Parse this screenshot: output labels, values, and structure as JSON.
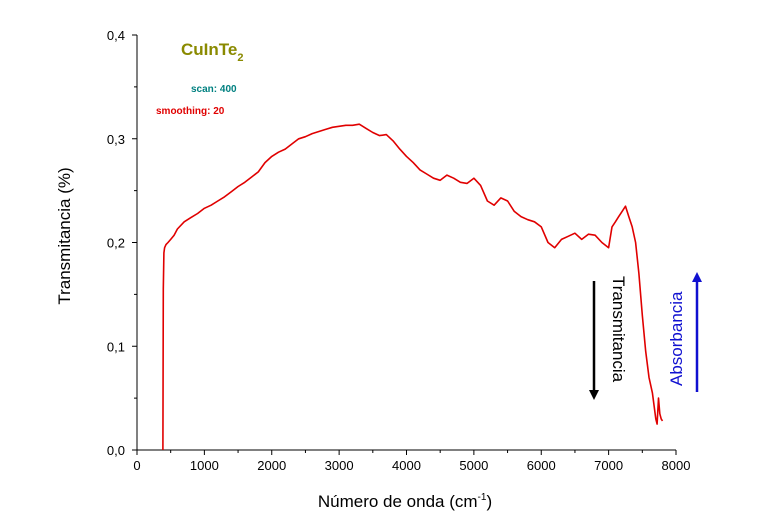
{
  "chart_data": {
    "type": "line",
    "xlabel": "Número de onda (cm",
    "xlabel_sup": "-1",
    "xlabel_close": ")",
    "ylabel": "Transmitancia (%)",
    "xlim": [
      0,
      8000
    ],
    "ylim": [
      0.0,
      0.4
    ],
    "x_ticks": [
      0,
      1000,
      2000,
      3000,
      4000,
      5000,
      6000,
      7000,
      8000
    ],
    "x_tick_labels": [
      "0",
      "1000",
      "2000",
      "3000",
      "4000",
      "5000",
      "6000",
      "7000",
      "8000"
    ],
    "y_ticks": [
      0.0,
      0.1,
      0.2,
      0.3,
      0.4
    ],
    "y_tick_labels": [
      "0,0",
      "0,1",
      "0,2",
      "0,3",
      "0,4"
    ],
    "grid": false,
    "legend": "none",
    "series": [
      {
        "color": "#e00000",
        "x": [
          385,
          390,
          400,
          410,
          430,
          460,
          500,
          550,
          600,
          700,
          800,
          900,
          1000,
          1100,
          1200,
          1300,
          1400,
          1500,
          1600,
          1700,
          1800,
          1900,
          2000,
          2100,
          2200,
          2300,
          2400,
          2500,
          2600,
          2700,
          2800,
          2900,
          3000,
          3100,
          3200,
          3300,
          3400,
          3500,
          3600,
          3700,
          3800,
          3900,
          4000,
          4100,
          4200,
          4300,
          4400,
          4500,
          4600,
          4700,
          4800,
          4900,
          5000,
          5100,
          5200,
          5300,
          5400,
          5500,
          5600,
          5700,
          5800,
          5900,
          6000,
          6100,
          6200,
          6300,
          6400,
          6500,
          6600,
          6700,
          6800,
          6900,
          7000,
          7050,
          7100,
          7150,
          7200,
          7250,
          7300,
          7350,
          7400,
          7450,
          7500,
          7550,
          7600,
          7650,
          7700,
          7720,
          7740,
          7760,
          7780,
          7800
        ],
        "y": [
          0.0,
          0.155,
          0.19,
          0.195,
          0.198,
          0.2,
          0.203,
          0.207,
          0.213,
          0.22,
          0.224,
          0.228,
          0.233,
          0.236,
          0.24,
          0.244,
          0.249,
          0.254,
          0.258,
          0.263,
          0.268,
          0.277,
          0.283,
          0.287,
          0.29,
          0.295,
          0.3,
          0.302,
          0.305,
          0.307,
          0.309,
          0.311,
          0.312,
          0.313,
          0.313,
          0.314,
          0.31,
          0.306,
          0.303,
          0.304,
          0.298,
          0.29,
          0.283,
          0.277,
          0.27,
          0.266,
          0.262,
          0.26,
          0.265,
          0.262,
          0.258,
          0.257,
          0.262,
          0.255,
          0.24,
          0.236,
          0.243,
          0.24,
          0.23,
          0.225,
          0.222,
          0.22,
          0.215,
          0.2,
          0.195,
          0.203,
          0.206,
          0.209,
          0.203,
          0.208,
          0.207,
          0.2,
          0.195,
          0.215,
          0.22,
          0.225,
          0.23,
          0.235,
          0.225,
          0.215,
          0.2,
          0.17,
          0.13,
          0.095,
          0.07,
          0.055,
          0.03,
          0.025,
          0.05,
          0.035,
          0.03,
          0.028
        ]
      }
    ],
    "annotations": {
      "compound": "CuInTe",
      "compound_sub": "2",
      "scan": "scan: 400",
      "smoothing": "smoothing: 20",
      "transmitancia": "Transmitancia",
      "absorbancia": "Absorbancia"
    }
  }
}
